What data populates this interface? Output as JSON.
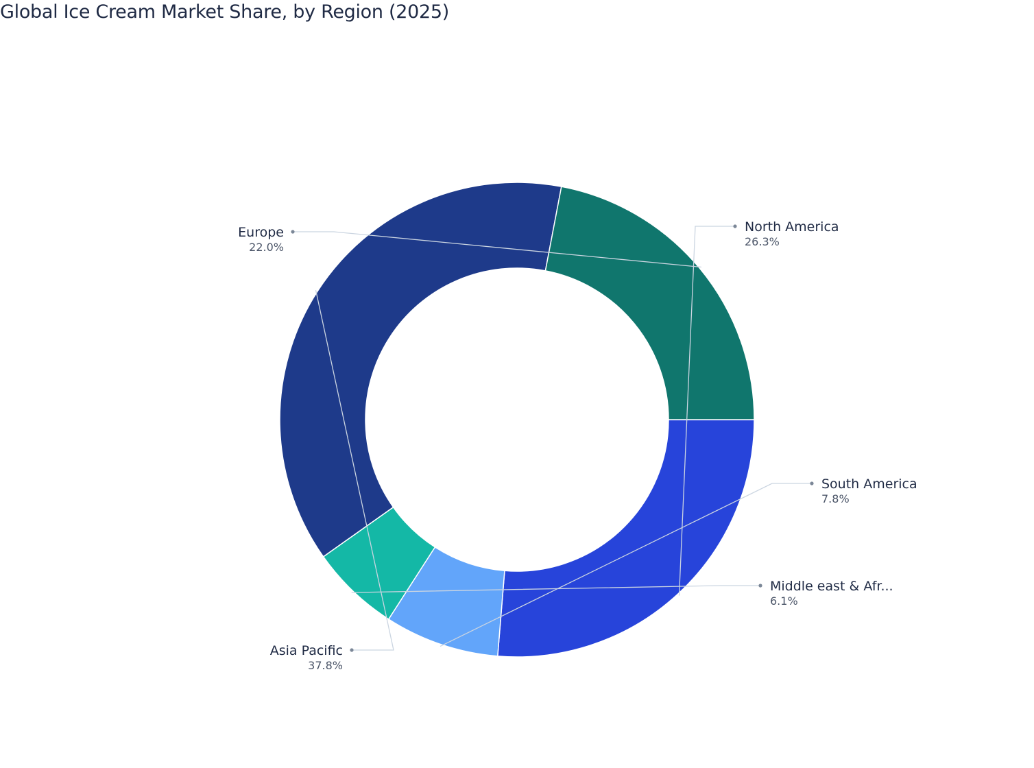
{
  "chart_data": {
    "type": "pie",
    "title": "Global Ice Cream Market Share, by Region (2025)",
    "hole": true,
    "labels": [
      "North America",
      "South America",
      "Middle east & Afr...",
      "Asia Pacific",
      "Europe"
    ],
    "values": [
      26.3,
      7.8,
      6.1,
      37.8,
      22.0
    ],
    "value_labels": [
      "26.3%",
      "7.8%",
      "6.1%",
      "37.8%",
      "22.0%"
    ],
    "colors": [
      "#2744da",
      "#62a5fa",
      "#14b8a6",
      "#1e3a8a",
      "#10766d"
    ],
    "legend": "none",
    "label_position": "outside"
  }
}
